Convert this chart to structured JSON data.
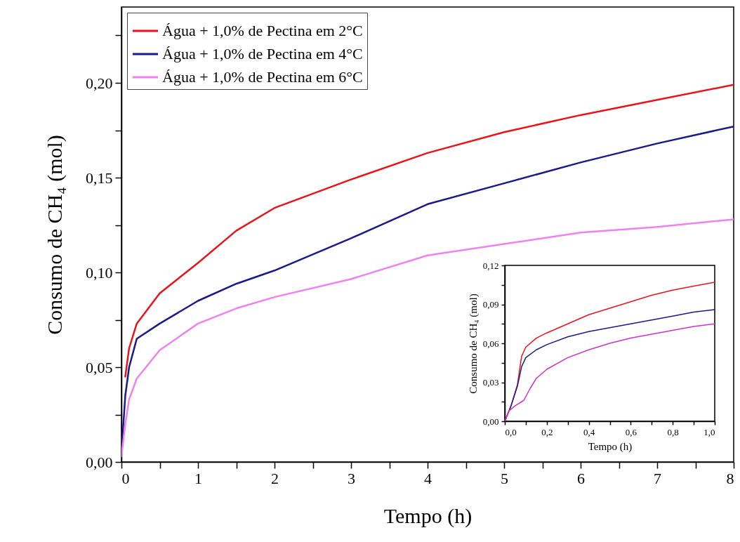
{
  "chart_data": [
    {
      "type": "line",
      "xlabel": "Tempo (h)",
      "ylabel": "Consumo de CH₄ (mol)",
      "xlim": [
        0,
        8
      ],
      "ylim": [
        0,
        0.24
      ],
      "xticks": [
        0,
        {
          "value": 0.5,
          "label": null
        },
        1,
        {
          "value": 1.5,
          "label": null
        },
        2,
        {
          "value": 2.5,
          "label": null
        },
        3,
        {
          "value": 3.5,
          "label": null
        },
        4,
        {
          "value": 4.5,
          "label": null
        },
        5,
        {
          "value": 5.5,
          "label": null
        },
        6,
        {
          "value": 6.5,
          "label": null
        },
        7,
        {
          "value": 7.5,
          "label": null
        },
        8
      ],
      "yticks": [
        {
          "value": 0,
          "label": "0,00"
        },
        {
          "value": 0.025,
          "label": null
        },
        {
          "value": 0.05,
          "label": "0,05"
        },
        {
          "value": 0.075,
          "label": null
        },
        {
          "value": 0.1,
          "label": "0,10"
        },
        {
          "value": 0.125,
          "label": null
        },
        {
          "value": 0.15,
          "label": "0,15"
        },
        {
          "value": 0.175,
          "label": null
        },
        {
          "value": 0.2,
          "label": "0,20"
        },
        {
          "value": 0.225,
          "label": null
        }
      ],
      "x": [
        0,
        0.05,
        0.1,
        0.2,
        0.5,
        1,
        1.5,
        2,
        3,
        4,
        5,
        6,
        7,
        8
      ],
      "series": [
        {
          "name": "Água + 1,0% de Pectina em 2°C",
          "color": "#e8141c",
          "values": [
            null,
            0.045,
            0.06,
            0.073,
            0.089,
            0.105,
            0.122,
            0.134,
            0.149,
            0.163,
            0.174,
            0.183,
            0.191,
            0.199
          ]
        },
        {
          "name": "Água + 1,0% de Pectina em 4°C",
          "color": "#1a1a8c",
          "values": [
            0.005,
            0.035,
            0.05,
            0.065,
            0.073,
            0.085,
            0.094,
            0.101,
            0.118,
            0.136,
            0.147,
            0.158,
            0.168,
            0.177
          ]
        },
        {
          "name": "Água + 1,0% de Pectina em 6°C",
          "color": "#ee82ee",
          "values": [
            0.003,
            0.02,
            0.033,
            0.044,
            0.059,
            0.073,
            0.081,
            0.087,
            0.0965,
            0.109,
            0.115,
            0.121,
            0.124,
            0.128
          ]
        }
      ],
      "legend": "top left",
      "grid": false,
      "line_style": "solid"
    },
    {
      "type": "line",
      "xlabel": "Tempo (h)",
      "ylabel": "Consumo de CH₄ (mol)",
      "xlim": [
        0,
        1
      ],
      "ylim": [
        0,
        0.12
      ],
      "xticks": [
        {
          "value": 0,
          "label": "0,0"
        },
        {
          "value": 0.1,
          "label": null
        },
        {
          "value": 0.2,
          "label": "0,2"
        },
        {
          "value": 0.3,
          "label": null
        },
        {
          "value": 0.4,
          "label": "0,4"
        },
        {
          "value": 0.5,
          "label": null
        },
        {
          "value": 0.6,
          "label": "0,6"
        },
        {
          "value": 0.7,
          "label": null
        },
        {
          "value": 0.8,
          "label": "0,8"
        },
        {
          "value": 0.9,
          "label": null
        },
        {
          "value": 1,
          "label": "1,0"
        }
      ],
      "yticks": [
        {
          "value": 0,
          "label": "0,00"
        },
        {
          "value": 0.015,
          "label": null
        },
        {
          "value": 0.03,
          "label": "0,03"
        },
        {
          "value": 0.045,
          "label": null
        },
        {
          "value": 0.06,
          "label": "0,06"
        },
        {
          "value": 0.075,
          "label": null
        },
        {
          "value": 0.09,
          "label": "0,09"
        },
        {
          "value": 0.105,
          "label": null
        },
        {
          "value": 0.12,
          "label": "0,12"
        }
      ],
      "x": [
        0,
        0.03,
        0.06,
        0.08,
        0.1,
        0.15,
        0.2,
        0.3,
        0.4,
        0.5,
        0.6,
        0.7,
        0.8,
        0.9,
        1
      ],
      "series": [
        {
          "color": "#e8141c",
          "values": [
            0,
            0.012,
            0.028,
            0.05,
            0.057,
            0.064,
            0.068,
            0.075,
            0.082,
            0.087,
            0.092,
            0.097,
            0.101,
            0.104,
            0.107
          ]
        },
        {
          "color": "#1a1a8c",
          "values": [
            0,
            0.012,
            0.027,
            0.042,
            0.049,
            0.055,
            0.059,
            0.065,
            0.069,
            0.072,
            0.075,
            0.078,
            0.081,
            0.084,
            0.086
          ]
        },
        {
          "color": "#cc33cc",
          "x": [
            0,
            0.02,
            0.05,
            0.08,
            0.09,
            0.12,
            0.15,
            0.2,
            0.3,
            0.4,
            0.5,
            0.6,
            0.7,
            0.8,
            0.9,
            1
          ],
          "values": [
            0,
            0.008,
            0.012,
            0.015,
            0.016,
            0.025,
            0.033,
            0.04,
            0.049,
            0.055,
            0.06,
            0.064,
            0.067,
            0.07,
            0.073,
            0.075
          ]
        }
      ],
      "legend": false,
      "grid": false,
      "line_style": "solid"
    }
  ]
}
